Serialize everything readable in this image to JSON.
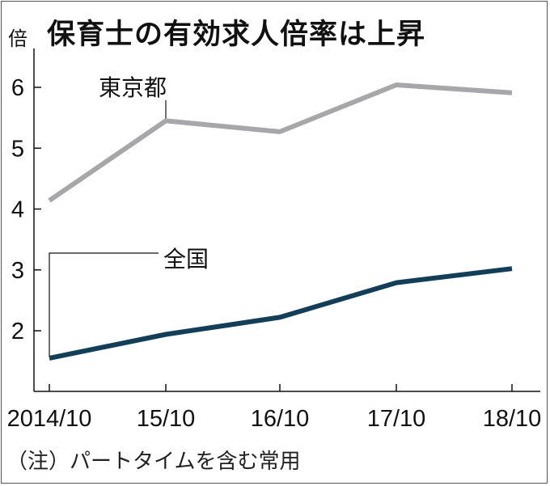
{
  "chart_data": {
    "type": "line",
    "title": "保育士の有効求人倍率は上昇",
    "unit_label": "倍",
    "note": "（注）パートタイムを含む常用",
    "categories": [
      "2014/10",
      "15/10",
      "16/10",
      "17/10",
      "18/10"
    ],
    "ylim": [
      1,
      6.5
    ],
    "yticks": [
      2,
      3,
      4,
      5,
      6
    ],
    "grid": false,
    "series": [
      {
        "name": "東京都",
        "values": [
          4.14,
          5.45,
          5.27,
          6.04,
          5.91
        ],
        "color": "#a7a7aa"
      },
      {
        "name": "全国",
        "values": [
          1.55,
          1.94,
          2.22,
          2.79,
          3.02
        ],
        "color": "#123f57"
      }
    ]
  }
}
